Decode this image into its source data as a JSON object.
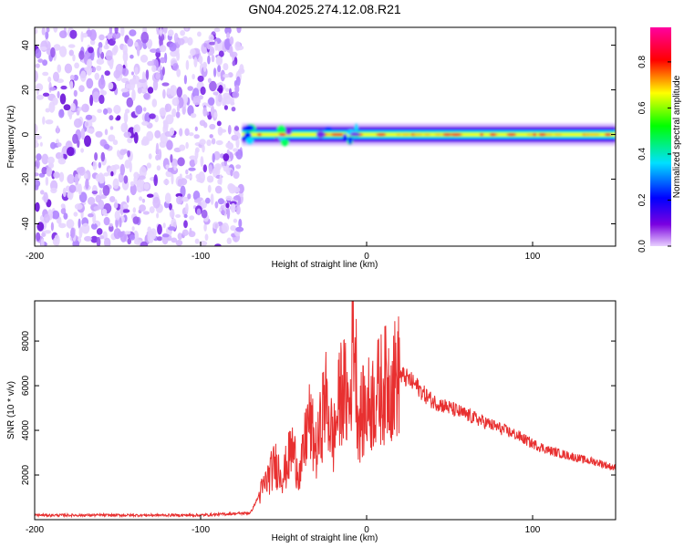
{
  "chart_data": [
    {
      "type": "heatmap",
      "title": "GN04.2025.274.12.08.R21",
      "xlabel": "Height of straight line (km)",
      "ylabel": "Frequency (Hz)",
      "xlim": [
        -200,
        150
      ],
      "ylim": [
        -50,
        48
      ],
      "xticks": [
        -200,
        -100,
        0,
        100
      ],
      "yticks": [
        -40,
        -20,
        0,
        20,
        40
      ],
      "colorbar": {
        "label": "Normalized spectral amplitude",
        "range": [
          0.0,
          0.95
        ],
        "ticks": [
          0.0,
          0.2,
          0.4,
          0.6,
          0.8
        ],
        "colormap": [
          "#e8d0ff",
          "#7a00e0",
          "#0000ff",
          "#00e0ff",
          "#00ff00",
          "#ffff00",
          "#ff0000",
          "#ff00a0"
        ]
      },
      "regions": [
        {
          "description": "broadband noise",
          "x_range": [
            -200,
            -75
          ],
          "frequency_range": [
            -50,
            48
          ],
          "amplitude": 0.05
        },
        {
          "description": "narrow band near 0 Hz",
          "x_range": [
            -75,
            150
          ],
          "center_frequency": 0,
          "amplitude": [
            0.3,
            0.95
          ]
        }
      ]
    },
    {
      "type": "line",
      "xlabel": "Height of straight line (km)",
      "ylabel": "SNR (10 * v/v)",
      "xlim": [
        -200,
        150
      ],
      "ylim": [
        0,
        9800
      ],
      "xticks": [
        -200,
        -100,
        0,
        100
      ],
      "yticks": [
        2000,
        4000,
        6000,
        8000
      ],
      "color": "#e83030",
      "x": [
        -200,
        -150,
        -100,
        -70,
        -62,
        -55,
        -50,
        -45,
        -40,
        -35,
        -30,
        -25,
        -20,
        -15,
        -10,
        -8,
        -5,
        0,
        5,
        10,
        15,
        20,
        25,
        30,
        35,
        40,
        50,
        60,
        70,
        80,
        90,
        100,
        110,
        120,
        130,
        140,
        150
      ],
      "y": [
        200,
        200,
        200,
        300,
        1500,
        2500,
        2000,
        3200,
        2000,
        4500,
        3000,
        5500,
        3500,
        6000,
        5000,
        9500,
        4500,
        5000,
        5500,
        6000,
        6200,
        6500,
        6300,
        6000,
        5600,
        5300,
        5000,
        4700,
        4400,
        4100,
        3800,
        3400,
        3100,
        2900,
        2700,
        2550,
        2300
      ]
    }
  ]
}
